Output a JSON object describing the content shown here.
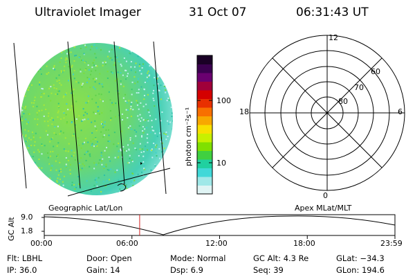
{
  "header": {
    "instrument": "Ultraviolet Imager",
    "date": "31 Oct 07",
    "time": "06:31:43 UT"
  },
  "colorbar": {
    "label": "photon cm⁻²s⁻¹",
    "ticks": [
      "100",
      "10"
    ],
    "colors": [
      "#1a0026",
      "#3b0050",
      "#6a0070",
      "#a0003a",
      "#d40000",
      "#e83000",
      "#f87000",
      "#f8a800",
      "#f8e000",
      "#c8f000",
      "#80e000",
      "#40d040",
      "#20d0a0",
      "#40d8d8",
      "#a0e8e8",
      "#e0f4f4"
    ]
  },
  "polar_plot": {
    "lat_labels": [
      "60",
      "70",
      "80"
    ],
    "mlt_labels": {
      "top": "12",
      "right": "6",
      "bottom": "0",
      "left": "18"
    }
  },
  "altitude_panel": {
    "left_title": "Geographic Lat/Lon",
    "right_title": "Apex  MLat/MLT",
    "axis_label": "GC Alt",
    "y_ticks": [
      "9.0",
      "1.8"
    ],
    "x_ticks": [
      "00:00",
      "06:00",
      "12:00",
      "18:00",
      "23:59"
    ],
    "current_time_fraction": 0.272
  },
  "status": {
    "flt": "Flt: LBHL",
    "ip": "IP: 36.0",
    "door": "Door: Open",
    "gain": "Gain: 14",
    "mode": "Mode: Normal",
    "dsp": "Dsp:     6.9",
    "gc_alt": "GC Alt: 4.3 Re",
    "seq": "Seq: 39",
    "glat": "GLat: −34.3",
    "glon": "GLon: 194.6"
  }
}
